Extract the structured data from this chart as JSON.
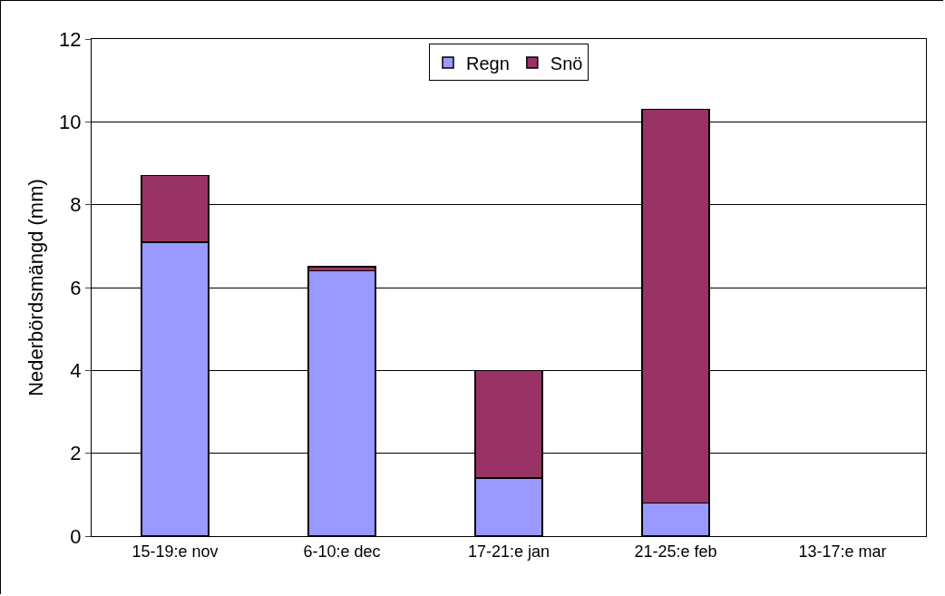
{
  "chart_data": {
    "type": "bar",
    "stacked": true,
    "ylabel": "Nederbördsmängd (mm)",
    "categories": [
      "15-19:e nov",
      "6-10:e dec",
      "17-21:e jan",
      "21-25:e feb",
      "13-17:e mar"
    ],
    "series": [
      {
        "name": "Regn",
        "color": "#9999ff",
        "values": [
          7.1,
          6.4,
          1.4,
          0.8,
          null
        ]
      },
      {
        "name": "Snö",
        "color": "#993366",
        "values": [
          1.6,
          0.1,
          2.6,
          9.5,
          null
        ]
      }
    ],
    "ylim": [
      0,
      12
    ],
    "yticks": [
      0,
      2,
      4,
      6,
      8,
      10,
      12
    ],
    "grid": "y",
    "legend": "top"
  }
}
